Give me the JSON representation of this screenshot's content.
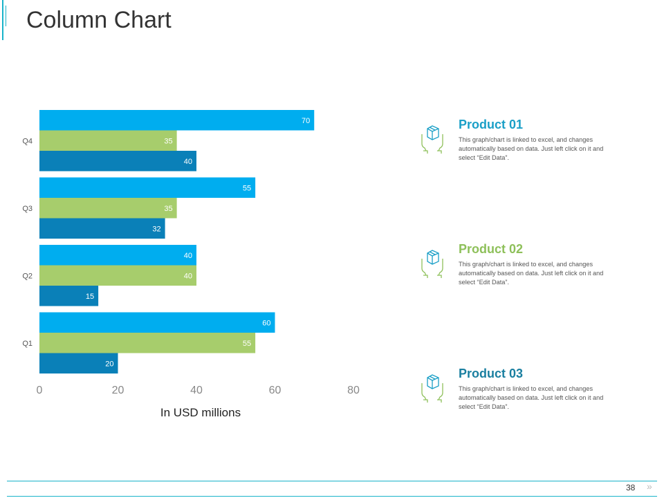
{
  "page": {
    "title": "Column Chart",
    "page_number": "38",
    "nav_glyph": "»"
  },
  "colors": {
    "accent": "#17b3c9",
    "series_1": "#00adef",
    "series_2": "#a7cd6c",
    "series_3": "#0a80b8",
    "product_1_title": "#1a9fc7",
    "product_2_title": "#8ec05a",
    "product_3_title": "#1a7fa0"
  },
  "products": [
    {
      "title": "Product 01",
      "description": "This graph/chart is linked to excel, and changes automatically based on data. Just left click on it and select “Edit Data”.",
      "icon": "box-in-hands-icon"
    },
    {
      "title": "Product 02",
      "description": "This graph/chart is linked to excel, and changes automatically based on data. Just left click on it and select “Edit Data”.",
      "icon": "box-in-hands-icon"
    },
    {
      "title": "Product 03",
      "description": "This graph/chart is linked to excel, and changes automatically based on data. Just left click on it and select “Edit Data”.",
      "icon": "box-in-hands-icon"
    }
  ],
  "chart_data": {
    "type": "bar",
    "orientation": "horizontal",
    "categories": [
      "Q1",
      "Q2",
      "Q3",
      "Q4"
    ],
    "series": [
      {
        "name": "Product 01",
        "values": [
          60,
          40,
          55,
          70
        ]
      },
      {
        "name": "Product 02",
        "values": [
          55,
          40,
          35,
          35
        ]
      },
      {
        "name": "Product 03",
        "values": [
          20,
          15,
          32,
          40
        ]
      }
    ],
    "xticks": [
      "0",
      "20",
      "40",
      "60",
      "80"
    ],
    "xlim": [
      0,
      80
    ],
    "xlabel": "In USD millions",
    "ylabel": "",
    "title": "",
    "grid": false,
    "legend": "none"
  }
}
